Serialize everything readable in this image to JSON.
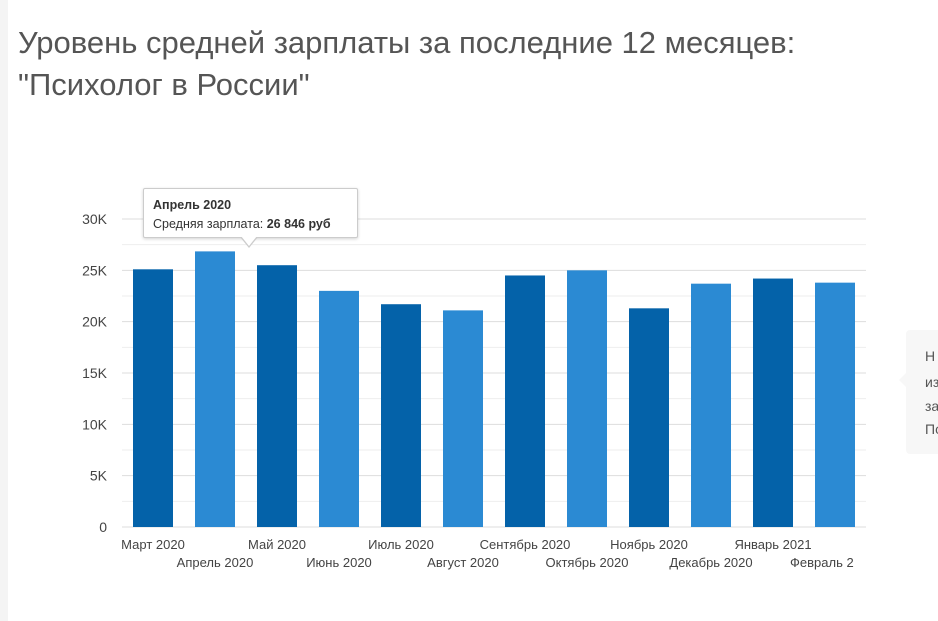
{
  "page": {
    "title_line1": "Уровень средней зарплаты за последние 12 месяцев:",
    "title_line2": "\"Психолог в России\""
  },
  "tooltip": {
    "title": "Апрель 2020",
    "label": "Средняя зарплата: ",
    "value": "26 846 руб"
  },
  "side_panel": {
    "lines": [
      "Н",
      "из",
      "за",
      "По"
    ]
  },
  "colors": {
    "dark_bar": "#0462a9",
    "light_bar": "#2b8ad3",
    "grid": "#dddddd",
    "axis_text": "#444444"
  },
  "chart_data": {
    "type": "bar",
    "categories": [
      "Март 2020",
      "Апрель 2020",
      "Май 2020",
      "Июнь 2020",
      "Июль 2020",
      "Август 2020",
      "Сентябрь 2020",
      "Октябрь 2020",
      "Ноябрь 2020",
      "Декабрь 2020",
      "Январь 2021",
      "Февраль 2"
    ],
    "values": [
      25100,
      26846,
      25500,
      23000,
      21700,
      21100,
      24500,
      25000,
      21300,
      23700,
      24200,
      23800
    ],
    "highlighted": "Апрель 2020",
    "ylim": [
      0,
      30000
    ],
    "yticks": [
      0,
      5000,
      10000,
      15000,
      20000,
      25000,
      30000
    ],
    "ytick_labels": [
      "0",
      "5K",
      "10K",
      "15K",
      "20K",
      "25K",
      "30K"
    ],
    "grid": true,
    "xlabel": "",
    "ylabel": ""
  }
}
